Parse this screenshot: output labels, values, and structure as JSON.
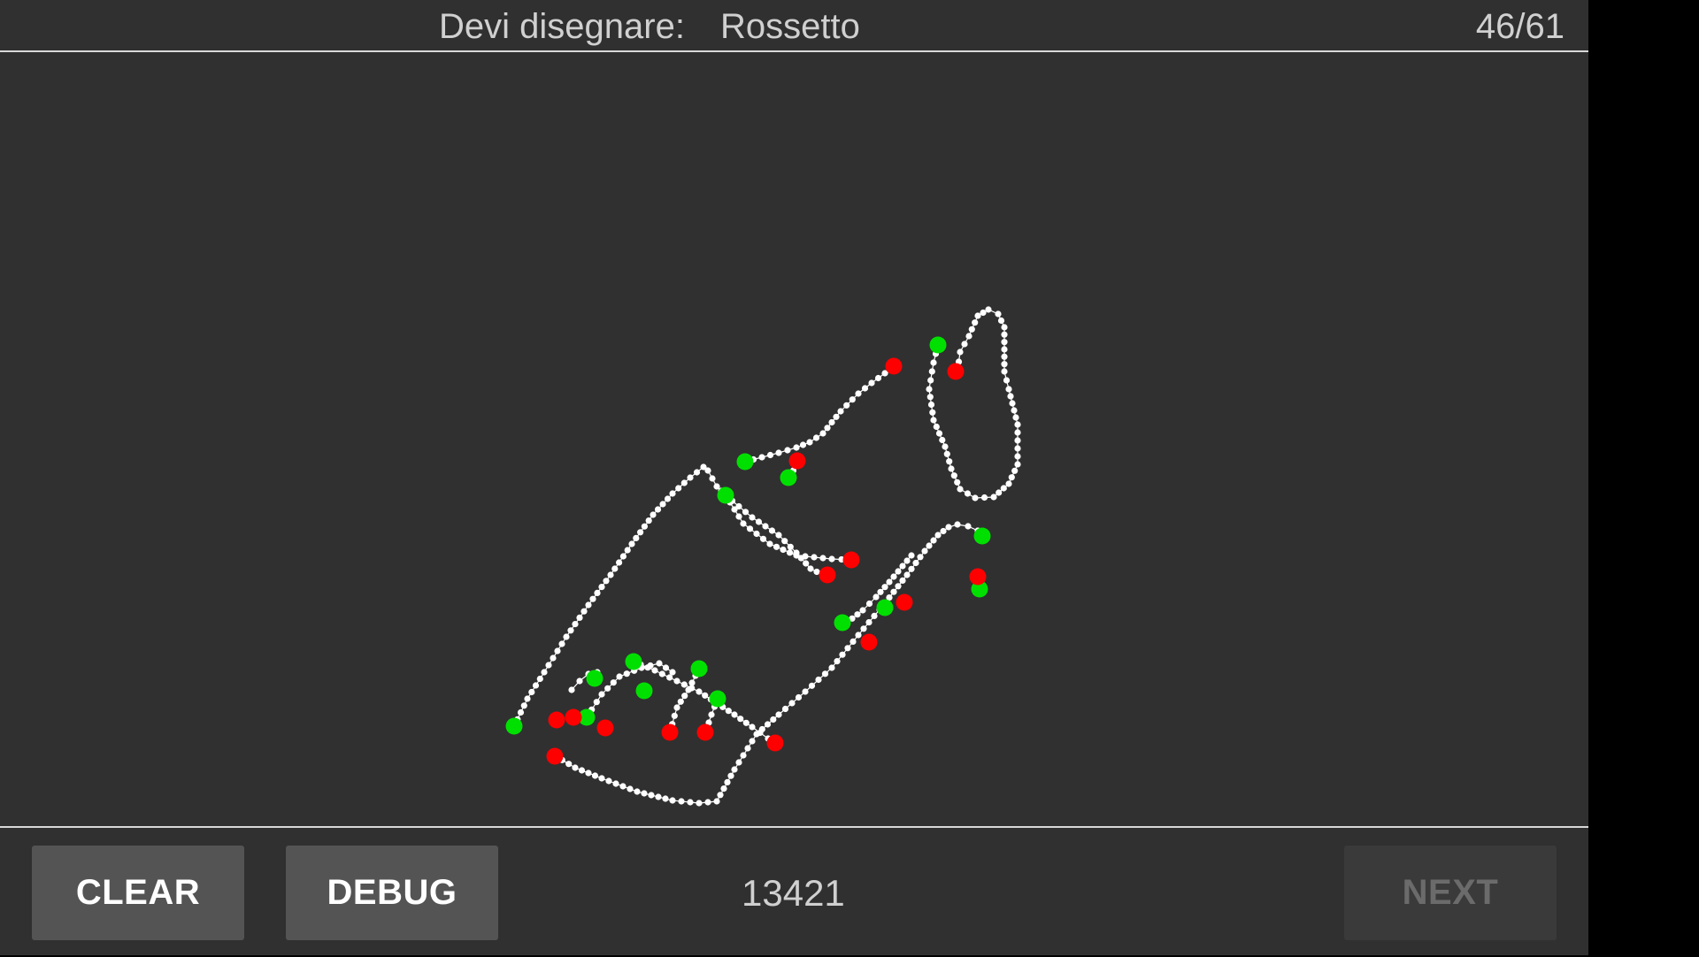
{
  "header": {
    "prompt_label": "Devi disegnare:",
    "word": "Rossetto",
    "progress": "46/61"
  },
  "footer": {
    "clear_label": "CLEAR",
    "debug_label": "DEBUG",
    "score": "13421",
    "next_label": "NEXT",
    "next_enabled": false
  },
  "colors": {
    "background": "#303030",
    "stroke_point": "#ffffff",
    "stroke_start": "#00e000",
    "stroke_end": "#ff0000"
  }
}
